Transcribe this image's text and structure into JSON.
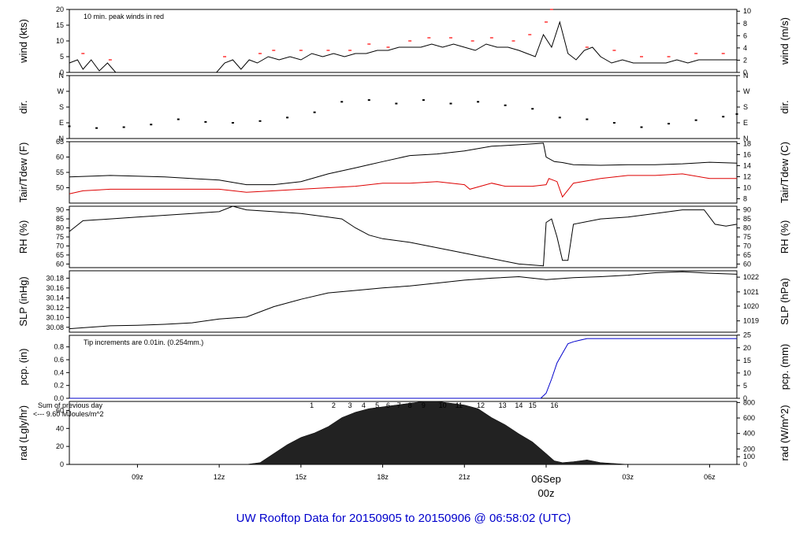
{
  "title": "UW Rooftop Data for 20150905  to  20150906 @ 06:58:02  (UTC)",
  "colors": {
    "black": "#000000",
    "tdew": "#dd0000",
    "peak": "#ff0000",
    "precip": "#0000cc",
    "rad_note": "#9900cc",
    "date_marker": "#cc0000",
    "title": "#0000cc"
  },
  "x_axis": {
    "start_hour": 6.5,
    "end_hour": 31.0,
    "ticks": [
      {
        "hour": 9,
        "label": "09z"
      },
      {
        "hour": 12,
        "label": "12z"
      },
      {
        "hour": 15,
        "label": "15z"
      },
      {
        "hour": 18,
        "label": "18z"
      },
      {
        "hour": 21,
        "label": "21z"
      },
      {
        "hour": 24,
        "label": "00z",
        "date": "06Sep",
        "major": true
      },
      {
        "hour": 27,
        "label": "03z"
      },
      {
        "hour": 30,
        "label": "06z"
      }
    ]
  },
  "chart_data": [
    {
      "type": "line",
      "name_key": "wind",
      "ylabel": "wind (kts)",
      "ylabel_right": "wind (m/s)",
      "ylim": [
        0,
        20
      ],
      "yticks": [
        0,
        5,
        10,
        15,
        20
      ],
      "right_ticks": [
        {
          "v": 0,
          "label": "0"
        },
        {
          "v": 3.89,
          "label": "2"
        },
        {
          "v": 7.78,
          "label": "4"
        },
        {
          "v": 11.66,
          "label": "6"
        },
        {
          "v": 15.55,
          "label": "8"
        },
        {
          "v": 19.44,
          "label": "10"
        }
      ],
      "annotation": "10 min. peak winds in red",
      "series": [
        {
          "color": "#000000",
          "x": [
            6.5,
            6.8,
            7.0,
            7.3,
            7.6,
            7.9,
            8.2,
            8.6,
            9.0,
            9.5,
            10.0,
            10.5,
            11.0,
            11.5,
            11.9,
            12.2,
            12.5,
            12.8,
            13.1,
            13.4,
            13.8,
            14.2,
            14.6,
            15.0,
            15.4,
            15.8,
            16.2,
            16.6,
            17.0,
            17.4,
            17.8,
            18.2,
            18.6,
            19.0,
            19.4,
            19.8,
            20.2,
            20.6,
            21.0,
            21.4,
            21.8,
            22.2,
            22.6,
            23.0,
            23.3,
            23.6,
            23.9,
            24.2,
            24.5,
            24.8,
            25.1,
            25.4,
            25.7,
            26.0,
            26.4,
            26.8,
            27.2,
            27.6,
            28.0,
            28.4,
            28.8,
            29.2,
            29.6,
            30.0,
            30.4,
            30.8,
            31.0
          ],
          "y": [
            3,
            4,
            1,
            4,
            0.5,
            3,
            0,
            0,
            0,
            0,
            0,
            0,
            0,
            0,
            0,
            3,
            4,
            1,
            4,
            3,
            5,
            4,
            5,
            4,
            6,
            5,
            6,
            5,
            6,
            6,
            7,
            7,
            8,
            8,
            8,
            9,
            8,
            9,
            8,
            7,
            9,
            8,
            8,
            7,
            6,
            5,
            12,
            8,
            16,
            6,
            4,
            7,
            8,
            5,
            3,
            4,
            3,
            3,
            3,
            3,
            4,
            3,
            4,
            4,
            4,
            4,
            4
          ]
        },
        {
          "color": "#ff0000",
          "marker": "dash",
          "x": [
            7.0,
            8.0,
            12.2,
            13.5,
            14.0,
            15.0,
            16.0,
            16.8,
            17.5,
            18.2,
            19.0,
            19.7,
            20.5,
            21.3,
            22.0,
            22.8,
            23.4,
            24.0,
            24.2,
            25.5,
            26.5,
            27.5,
            28.5,
            29.5,
            30.5
          ],
          "y": [
            6,
            4,
            5,
            6,
            7,
            7,
            7,
            7,
            9,
            8,
            10,
            11,
            11,
            10,
            11,
            10,
            12,
            16,
            20,
            8,
            7,
            5,
            5,
            6,
            6
          ]
        }
      ]
    },
    {
      "type": "scatter",
      "name_key": "dir",
      "ylabel": "dir.",
      "ylabel_right": "dir.",
      "ylim": [
        0,
        360
      ],
      "ticklabels": [
        {
          "v": 0,
          "label": "N"
        },
        {
          "v": 90,
          "label": "E"
        },
        {
          "v": 180,
          "label": "S"
        },
        {
          "v": 270,
          "label": "W"
        },
        {
          "v": 360,
          "label": "N"
        }
      ],
      "series": [
        {
          "color": "#000000",
          "x": [
            6.5,
            7.5,
            8.5,
            9.5,
            10.5,
            11.5,
            12.5,
            13.5,
            14.5,
            15.5,
            16.5,
            17.5,
            18.5,
            19.5,
            20.5,
            21.5,
            22.5,
            23.5,
            24.5,
            25.5,
            26.5,
            27.5,
            28.5,
            29.5,
            30.5,
            31.0
          ],
          "y": [
            70,
            60,
            65,
            80,
            110,
            95,
            90,
            100,
            120,
            150,
            210,
            220,
            200,
            220,
            200,
            210,
            190,
            170,
            120,
            110,
            90,
            65,
            85,
            105,
            125,
            140
          ]
        }
      ]
    },
    {
      "type": "line",
      "name_key": "temp",
      "ylabel": "Tair/Tdew (F)",
      "ylabel_right": "Tair/Tdew (C)",
      "ylim": [
        45,
        65
      ],
      "yticks": [
        50,
        55,
        60,
        65
      ],
      "right_ticks": [
        {
          "v": 46.4,
          "label": "8"
        },
        {
          "v": 50,
          "label": "10"
        },
        {
          "v": 53.6,
          "label": "12"
        },
        {
          "v": 57.2,
          "label": "14"
        },
        {
          "v": 60.8,
          "label": "16"
        },
        {
          "v": 64.4,
          "label": "18"
        }
      ],
      "series": [
        {
          "color": "#000000",
          "x": [
            6.5,
            8.0,
            10.0,
            12.0,
            13.0,
            14.0,
            15.0,
            16.0,
            17.0,
            17.5,
            18.0,
            19.0,
            20.0,
            21.0,
            22.0,
            23.0,
            23.9,
            24.0,
            24.3,
            24.6,
            25.0,
            26.0,
            27.0,
            28.0,
            29.0,
            30.0,
            31.0
          ],
          "y": [
            53.5,
            54,
            53.5,
            52.5,
            51,
            51,
            52,
            54.5,
            56.5,
            57.5,
            58.5,
            60.5,
            61,
            62,
            63.5,
            64,
            64.5,
            60,
            58.5,
            58.2,
            57.5,
            57.3,
            57.5,
            57.5,
            57.8,
            58.3,
            58
          ]
        },
        {
          "color": "#dd0000",
          "x": [
            6.5,
            7.0,
            8.0,
            10.0,
            12.0,
            13.0,
            14.0,
            15.0,
            16.0,
            17.0,
            18.0,
            19.0,
            20.0,
            21.0,
            21.2,
            22.0,
            22.5,
            23.0,
            23.5,
            24.0,
            24.1,
            24.4,
            24.6,
            25.0,
            26.0,
            27.0,
            28.0,
            29.0,
            30.0,
            31.0
          ],
          "y": [
            48,
            49,
            49.5,
            49.5,
            49.5,
            48.5,
            49,
            49.5,
            50,
            50.5,
            51.5,
            51.5,
            52,
            51,
            49.5,
            51.5,
            50.5,
            50.5,
            50.5,
            51,
            53,
            52,
            47,
            51.5,
            53,
            54,
            54,
            54.5,
            53,
            53
          ]
        }
      ]
    },
    {
      "type": "line",
      "name_key": "rh",
      "ylabel": "RH (%)",
      "ylabel_right": "RH (%)",
      "ylim": [
        58,
        92
      ],
      "yticks": [
        60,
        65,
        70,
        75,
        80,
        85,
        90
      ],
      "series": [
        {
          "color": "#000000",
          "x": [
            6.5,
            7.0,
            8.0,
            9.0,
            10.0,
            11.0,
            12.0,
            12.5,
            13.0,
            14.0,
            15.0,
            16.0,
            16.5,
            17.0,
            17.5,
            18.0,
            19.0,
            20.0,
            21.0,
            22.0,
            23.0,
            23.9,
            24.0,
            24.2,
            24.4,
            24.6,
            24.8,
            25.0,
            26.0,
            27.0,
            28.0,
            29.0,
            29.8,
            30.2,
            30.6,
            31.0
          ],
          "y": [
            78,
            84,
            85,
            86,
            87,
            88,
            89,
            92,
            90,
            89,
            88,
            86,
            85,
            80,
            76,
            74,
            72,
            69,
            66,
            63,
            60,
            59,
            83,
            85,
            75,
            62,
            62,
            82,
            85,
            86,
            88,
            90,
            90,
            82,
            81,
            82
          ]
        }
      ]
    },
    {
      "type": "line",
      "name_key": "slp",
      "ylabel": "SLP (inHg)",
      "ylabel_right": "SLP (hPa)",
      "ylim": [
        30.07,
        30.195
      ],
      "yticks": [
        30.08,
        30.1,
        30.12,
        30.14,
        30.16,
        30.18
      ],
      "right_ticks": [
        {
          "v": 30.093,
          "label": "1019"
        },
        {
          "v": 30.123,
          "label": "1020"
        },
        {
          "v": 30.152,
          "label": "1021"
        },
        {
          "v": 30.182,
          "label": "1022"
        }
      ],
      "series": [
        {
          "color": "#000000",
          "x": [
            6.5,
            7.0,
            8.0,
            9.0,
            10.0,
            11.0,
            12.0,
            13.0,
            14.0,
            15.0,
            16.0,
            17.0,
            18.0,
            19.0,
            20.0,
            21.0,
            22.0,
            23.0,
            24.0,
            25.0,
            26.0,
            27.0,
            28.0,
            29.0,
            30.0,
            31.0
          ],
          "y": [
            30.077,
            30.079,
            30.083,
            30.084,
            30.086,
            30.089,
            30.097,
            30.101,
            30.122,
            30.137,
            30.15,
            30.155,
            30.16,
            30.164,
            30.17,
            30.176,
            30.18,
            30.183,
            30.177,
            30.181,
            30.183,
            30.186,
            30.191,
            30.193,
            30.19,
            30.188
          ]
        }
      ]
    },
    {
      "type": "line",
      "name_key": "pcp",
      "ylabel": "pcp. (in)",
      "ylabel_right": "pcp. (mm)",
      "ylim": [
        0,
        0.98
      ],
      "yticks": [
        0.0,
        0.2,
        0.4,
        0.6,
        0.8
      ],
      "right_ticks": [
        {
          "v": 0,
          "label": "0"
        },
        {
          "v": 0.197,
          "label": "5"
        },
        {
          "v": 0.394,
          "label": "10"
        },
        {
          "v": 0.591,
          "label": "15"
        },
        {
          "v": 0.787,
          "label": "20"
        },
        {
          "v": 0.984,
          "label": "25"
        }
      ],
      "annotation": "Tip increments are 0.01in. (0.254mm.)",
      "series": [
        {
          "color": "#0000cc",
          "x": [
            6.5,
            23.8,
            24.0,
            24.2,
            24.4,
            24.6,
            24.8,
            25.0,
            25.2,
            25.5,
            31.0
          ],
          "y": [
            0,
            0,
            0.08,
            0.3,
            0.55,
            0.7,
            0.85,
            0.88,
            0.9,
            0.93,
            0.93
          ]
        }
      ]
    },
    {
      "type": "area",
      "name_key": "rad",
      "ylabel": "rad (Lgly/hr)",
      "ylabel_right": "rad (W/m^2)",
      "ylim": [
        0,
        70
      ],
      "yticks": [
        0,
        20,
        40,
        60
      ],
      "right_ticks": [
        {
          "v": 0,
          "label": "0"
        },
        {
          "v": 8.6,
          "label": "100"
        },
        {
          "v": 17.2,
          "label": "200"
        },
        {
          "v": 34.4,
          "label": "400"
        },
        {
          "v": 51.6,
          "label": "600"
        },
        {
          "v": 68.8,
          "label": "800"
        }
      ],
      "annotation_lines": [
        "Sum of previous day",
        "<--- 9.60 MJoules/m^2"
      ],
      "hour_marks": [
        "1",
        "2",
        "3",
        "4",
        "5",
        "6",
        "7",
        "8",
        "9",
        "10",
        "11",
        "12",
        "13",
        "14",
        "15",
        "16"
      ],
      "series": [
        {
          "color": "#000000",
          "x": [
            6.5,
            13.0,
            13.5,
            14.0,
            14.5,
            15.0,
            15.5,
            16.0,
            16.5,
            17.0,
            17.5,
            18.0,
            18.5,
            19.0,
            19.5,
            20.0,
            20.5,
            21.0,
            21.5,
            22.0,
            22.5,
            23.0,
            23.5,
            24.0,
            24.3,
            24.6,
            25.0,
            25.5,
            26.0,
            26.5,
            27.0,
            31.0
          ],
          "y": [
            0,
            0,
            2,
            12,
            22,
            30,
            35,
            42,
            52,
            58,
            62,
            64,
            66,
            68,
            70,
            70,
            68,
            66,
            62,
            52,
            44,
            34,
            25,
            12,
            4,
            2,
            3,
            5,
            2,
            1,
            0,
            0
          ]
        }
      ]
    }
  ]
}
